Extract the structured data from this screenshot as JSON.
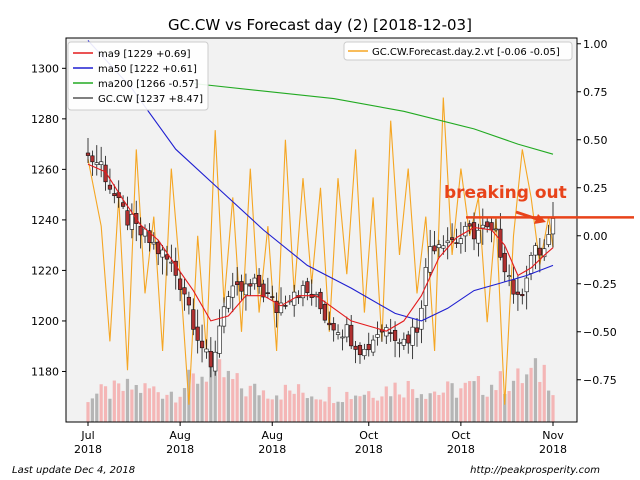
{
  "chart_data": {
    "type": "candlestick",
    "title": "GC.CW vs Forecast day (2)  [2018-12-03]",
    "left_axis": {
      "range": [
        1160,
        1312
      ],
      "ticks": [
        1180,
        1200,
        1220,
        1240,
        1260,
        1280,
        1300
      ],
      "tick_labels": [
        "1180",
        "1200",
        "1220",
        "1240",
        "1260",
        "1280",
        "1300"
      ]
    },
    "right_axis": {
      "range": [
        -0.97,
        1.03
      ],
      "ticks": [
        -0.75,
        -0.5,
        -0.25,
        0.0,
        0.25,
        0.5,
        0.75,
        1.0
      ],
      "tick_labels": [
        "−0.75",
        "−0.50",
        "−0.25",
        "0.00",
        "0.25",
        "0.50",
        "0.75",
        "1.00"
      ]
    },
    "x_axis": {
      "n_bars": 107,
      "ticks": [
        {
          "index": 0,
          "line1": "Jul",
          "line2": "2018"
        },
        {
          "index": 21,
          "line1": "Aug",
          "line2": "2018"
        },
        {
          "index": 42,
          "line1": "Aug",
          "line2": "2018"
        },
        {
          "index": 64,
          "line1": "Oct",
          "line2": "2018"
        },
        {
          "index": 85,
          "line1": "Oct",
          "line2": "2018"
        },
        {
          "index": 106,
          "line1": "Nov",
          "line2": "2018"
        }
      ]
    },
    "legend_left": {
      "placement": "top-left",
      "entries": [
        {
          "label": "ma9 [1229 +0.69]",
          "color": "#e41a1c"
        },
        {
          "label": "ma50 [1222 +0.61]",
          "color": "#1f1fd1"
        },
        {
          "label": "ma200 [1266 -0.57]",
          "color": "#22aa22"
        },
        {
          "label": "GC.CW [1237 +8.47]",
          "color": "#555555"
        }
      ]
    },
    "legend_right": {
      "placement": "top-right",
      "entries": [
        {
          "label": "GC.CW.Forecast.day.2.vt [-0.06 -0.05]",
          "color": "#f5a623"
        }
      ]
    },
    "annotation": {
      "text": "breaking out",
      "color": "#e8431a"
    },
    "reference_line": {
      "y": 1241,
      "color": "#e8431a"
    },
    "ma200_points": [
      [
        24,
        1294
      ],
      [
        40,
        1291
      ],
      [
        56,
        1288
      ],
      [
        72,
        1283
      ],
      [
        88,
        1276
      ],
      [
        98,
        1270
      ],
      [
        106,
        1266
      ]
    ],
    "ma50_points": [
      [
        0,
        1311
      ],
      [
        10,
        1292
      ],
      [
        20,
        1268
      ],
      [
        30,
        1252
      ],
      [
        40,
        1236
      ],
      [
        50,
        1222
      ],
      [
        60,
        1213
      ],
      [
        70,
        1203
      ],
      [
        76,
        1200
      ],
      [
        82,
        1205
      ],
      [
        88,
        1212
      ],
      [
        94,
        1215
      ],
      [
        100,
        1218
      ],
      [
        106,
        1222
      ]
    ],
    "ma9_points": [
      [
        0,
        1262
      ],
      [
        4,
        1259
      ],
      [
        8,
        1248
      ],
      [
        12,
        1238
      ],
      [
        16,
        1232
      ],
      [
        20,
        1222
      ],
      [
        24,
        1212
      ],
      [
        28,
        1200
      ],
      [
        32,
        1202
      ],
      [
        36,
        1210
      ],
      [
        40,
        1210
      ],
      [
        44,
        1206
      ],
      [
        48,
        1210
      ],
      [
        52,
        1210
      ],
      [
        56,
        1205
      ],
      [
        60,
        1200
      ],
      [
        64,
        1198
      ],
      [
        68,
        1196
      ],
      [
        72,
        1200
      ],
      [
        76,
        1210
      ],
      [
        80,
        1225
      ],
      [
        84,
        1233
      ],
      [
        88,
        1237
      ],
      [
        92,
        1236
      ],
      [
        95,
        1230
      ],
      [
        98,
        1218
      ],
      [
        101,
        1221
      ],
      [
        104,
        1226
      ],
      [
        106,
        1229
      ]
    ],
    "price_keypoints": [
      [
        0,
        1265
      ],
      [
        3,
        1262
      ],
      [
        7,
        1245
      ],
      [
        11,
        1236
      ],
      [
        15,
        1230
      ],
      [
        19,
        1222
      ],
      [
        22,
        1212
      ],
      [
        25,
        1195
      ],
      [
        28,
        1180
      ],
      [
        31,
        1208
      ],
      [
        35,
        1212
      ],
      [
        39,
        1214
      ],
      [
        43,
        1205
      ],
      [
        47,
        1213
      ],
      [
        51,
        1210
      ],
      [
        55,
        1200
      ],
      [
        59,
        1196
      ],
      [
        63,
        1188
      ],
      [
        66,
        1196
      ],
      [
        69,
        1198
      ],
      [
        72,
        1192
      ],
      [
        75,
        1198
      ],
      [
        78,
        1230
      ],
      [
        81,
        1233
      ],
      [
        84,
        1232
      ],
      [
        87,
        1235
      ],
      [
        90,
        1236
      ],
      [
        93,
        1233
      ],
      [
        96,
        1218
      ],
      [
        98,
        1207
      ],
      [
        101,
        1226
      ],
      [
        104,
        1228
      ],
      [
        106,
        1237
      ]
    ],
    "forecast_keypoints": [
      [
        0,
        0.4
      ],
      [
        3,
        0.05
      ],
      [
        5,
        -0.55
      ],
      [
        7,
        0.2
      ],
      [
        9,
        -0.7
      ],
      [
        11,
        0.45
      ],
      [
        13,
        -0.3
      ],
      [
        15,
        0.1
      ],
      [
        17,
        -0.6
      ],
      [
        19,
        0.35
      ],
      [
        21,
        -0.2
      ],
      [
        23,
        -0.88
      ],
      [
        25,
        0.0
      ],
      [
        27,
        -0.6
      ],
      [
        29,
        0.55
      ],
      [
        31,
        -0.35
      ],
      [
        33,
        0.2
      ],
      [
        35,
        -0.5
      ],
      [
        37,
        0.35
      ],
      [
        39,
        -0.4
      ],
      [
        41,
        0.05
      ],
      [
        43,
        -0.6
      ],
      [
        45,
        0.5
      ],
      [
        47,
        -0.3
      ],
      [
        49,
        0.3
      ],
      [
        51,
        -0.25
      ],
      [
        53,
        0.25
      ],
      [
        55,
        -0.5
      ],
      [
        57,
        0.3
      ],
      [
        59,
        -0.2
      ],
      [
        61,
        0.45
      ],
      [
        63,
        -0.4
      ],
      [
        65,
        0.2
      ],
      [
        67,
        -0.55
      ],
      [
        69,
        0.6
      ],
      [
        71,
        -0.1
      ],
      [
        73,
        0.35
      ],
      [
        75,
        -0.3
      ],
      [
        77,
        0.1
      ],
      [
        79,
        -0.6
      ],
      [
        81,
        0.72
      ],
      [
        83,
        -0.1
      ],
      [
        85,
        0.35
      ],
      [
        87,
        0.0
      ],
      [
        89,
        0.2
      ],
      [
        91,
        -0.45
      ],
      [
        93,
        0.1
      ],
      [
        95,
        -0.88
      ],
      [
        97,
        0.0
      ],
      [
        99,
        0.45
      ],
      [
        101,
        0.2
      ],
      [
        103,
        -0.15
      ],
      [
        105,
        0.1
      ],
      [
        106,
        -0.06
      ]
    ],
    "volume_keypoints": [
      [
        0,
        26
      ],
      [
        10,
        34
      ],
      [
        20,
        30
      ],
      [
        28,
        54
      ],
      [
        36,
        32
      ],
      [
        48,
        30
      ],
      [
        60,
        28
      ],
      [
        72,
        36
      ],
      [
        80,
        30
      ],
      [
        90,
        36
      ],
      [
        98,
        42
      ],
      [
        104,
        52
      ],
      [
        106,
        40
      ]
    ]
  },
  "footer": {
    "left": "Last update Dec  4, 2018",
    "right": "http://peakprosperity.com"
  }
}
